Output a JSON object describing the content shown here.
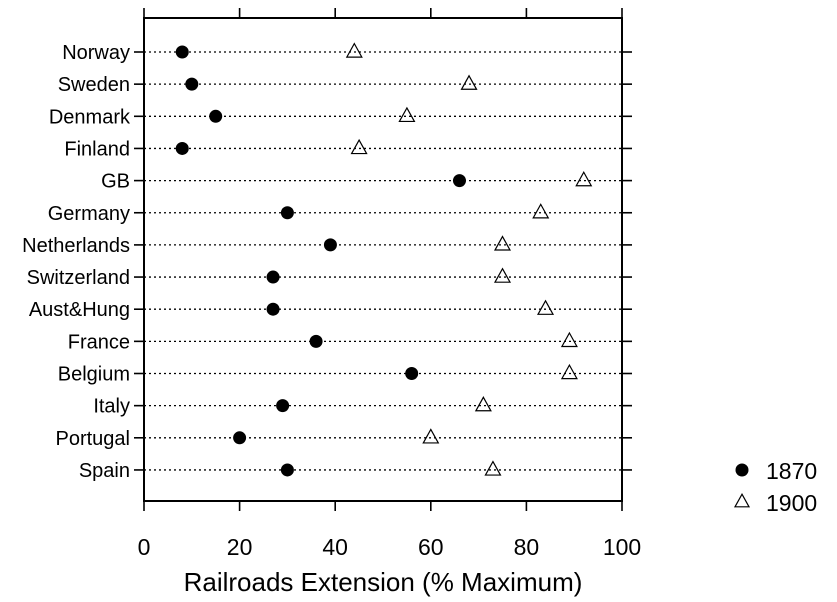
{
  "chart_data": {
    "type": "scatter",
    "title": "",
    "xlabel": "Railroads Extension (% Maximum)",
    "ylabel": "",
    "xlim": [
      0,
      100
    ],
    "xticks": [
      0,
      20,
      40,
      60,
      80,
      100
    ],
    "xtick_labels": [
      "0",
      "20",
      "40",
      "60",
      "80",
      "100"
    ],
    "grid": "dotted horizontal line per category",
    "legend_position": "bottom-right, outside plot",
    "categories": [
      "Norway",
      "Sweden",
      "Denmark",
      "Finland",
      "GB",
      "Germany",
      "Netherlands",
      "Switzerland",
      "Aust&Hung",
      "France",
      "Belgium",
      "Italy",
      "Portugal",
      "Spain"
    ],
    "series": [
      {
        "name": "1870",
        "marker": "filled-circle",
        "color": "#000000",
        "values": [
          8,
          10,
          15,
          8,
          66,
          30,
          39,
          27,
          27,
          36,
          56,
          29,
          20,
          30
        ]
      },
      {
        "name": "1900",
        "marker": "open-triangle",
        "color": "#000000",
        "values": [
          44,
          68,
          55,
          45,
          92,
          83,
          75,
          75,
          84,
          89,
          89,
          71,
          60,
          73
        ]
      }
    ]
  }
}
